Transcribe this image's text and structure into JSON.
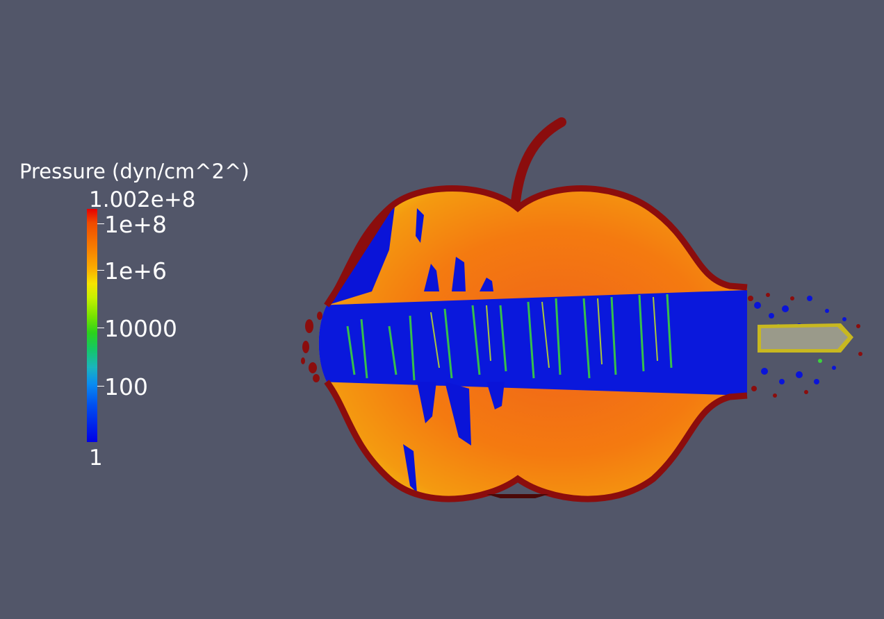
{
  "legend": {
    "title": "Pressure (dyn/cm^2^)",
    "max_label": "1.002e+8",
    "min_label": "1",
    "scale": "log",
    "ticks": [
      "1e+8",
      "1e+6",
      "10000",
      "100"
    ],
    "colormap": [
      "#e60000",
      "#f88400",
      "#f6e400",
      "#78e400",
      "#14c864",
      "#0a8cf0",
      "#0000e6"
    ]
  },
  "scene": {
    "background_color": "#525669",
    "object": "apple",
    "outline_color": "#8b0d0d",
    "stem_color": "#8b0d0d",
    "high_pressure_color": "#f07a10",
    "low_pressure_color": "#0a14d8",
    "projectile_color": "#9a9a8a",
    "projectile_rim_color": "#c8b820"
  }
}
